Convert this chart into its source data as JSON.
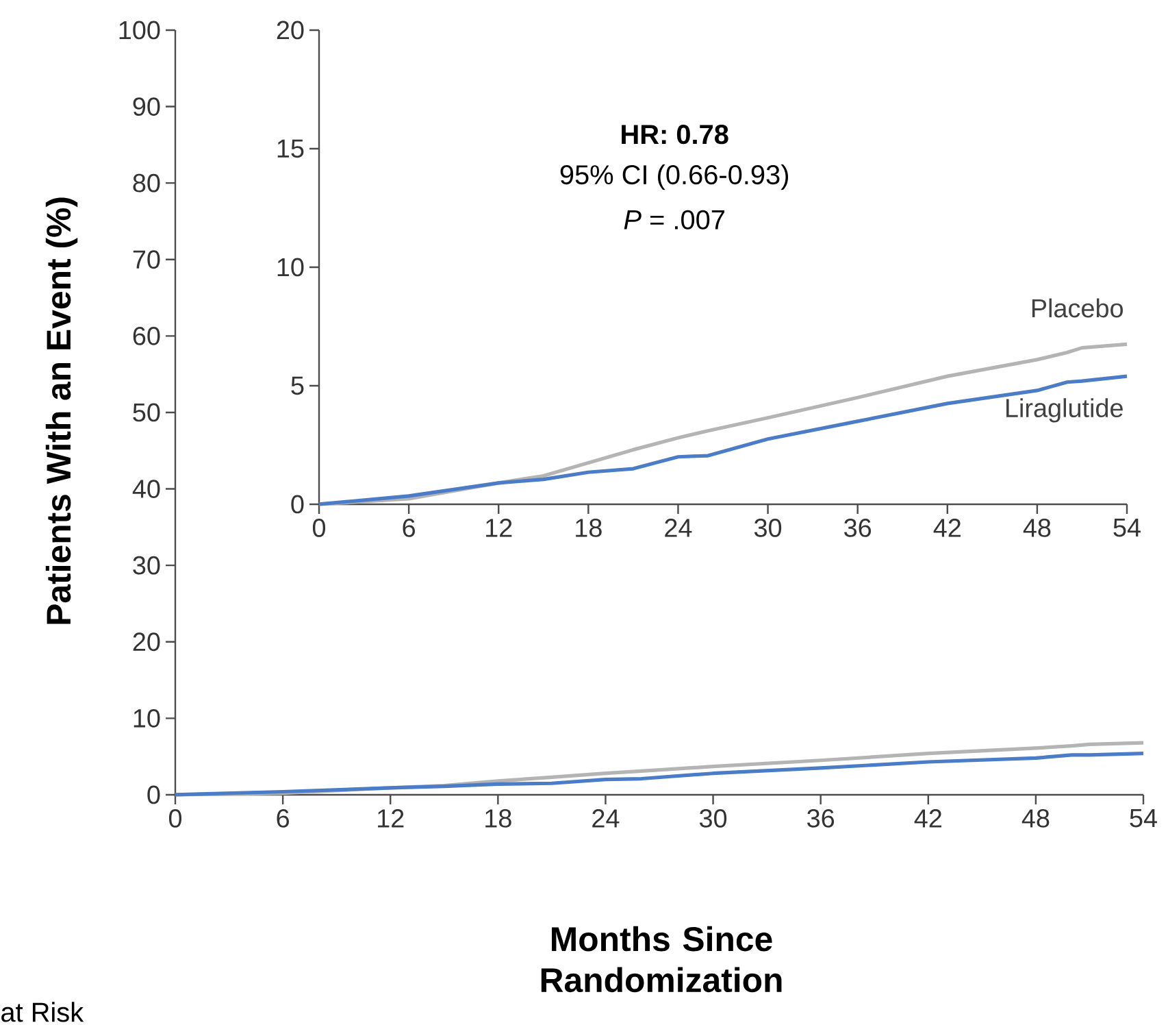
{
  "chart_data": [
    {
      "type": "line",
      "xlabel": "Months Since Randomization",
      "ylabel": "Patients With an Event (%)",
      "xlim": [
        0,
        54
      ],
      "ylim": [
        0,
        100
      ],
      "xticks": [
        0,
        6,
        12,
        18,
        24,
        30,
        36,
        42,
        48,
        54
      ],
      "yticks": [
        0,
        10,
        20,
        30,
        40,
        50,
        60,
        70,
        80,
        90,
        100
      ],
      "annotations": [
        "at Risk"
      ],
      "x": [
        0,
        6,
        12,
        15,
        18,
        21,
        24,
        26,
        30,
        36,
        42,
        48,
        50,
        51,
        54
      ],
      "series": [
        {
          "color": "#b4b4b4",
          "values": [
            0,
            0.2,
            0.9,
            1.2,
            1.8,
            2.3,
            2.8,
            3.1,
            3.7,
            4.5,
            5.4,
            6.1,
            6.4,
            6.6,
            6.8
          ]
        },
        {
          "color": "#4a7cc8",
          "values": [
            0,
            0.4,
            0.9,
            1.1,
            1.4,
            1.5,
            2.0,
            2.1,
            2.8,
            3.5,
            4.3,
            4.8,
            5.2,
            5.2,
            5.4
          ]
        }
      ]
    },
    {
      "type": "line",
      "xlim": [
        0,
        54
      ],
      "ylim": [
        0,
        20
      ],
      "xticks": [
        0,
        6,
        12,
        18,
        24,
        30,
        36,
        42,
        48,
        54
      ],
      "yticks": [
        0,
        5,
        10,
        15,
        20
      ],
      "annotations": [
        "**HR: 0.78**",
        "95% CI (0.66-0.93)",
        "*P* = .007"
      ],
      "x": [
        0,
        6,
        12,
        15,
        18,
        21,
        24,
        26,
        30,
        36,
        42,
        48,
        50,
        51,
        54
      ],
      "series": [
        {
          "name": "Placebo",
          "color": "#b4b4b4",
          "values": [
            0,
            0.23,
            0.9,
            1.2,
            1.75,
            2.3,
            2.8,
            3.1,
            3.65,
            4.5,
            5.4,
            6.1,
            6.4,
            6.6,
            6.75
          ]
        },
        {
          "name": "Liraglutide",
          "color": "#4a7cc8",
          "values": [
            0,
            0.35,
            0.9,
            1.05,
            1.35,
            1.5,
            2.0,
            2.05,
            2.75,
            3.5,
            4.25,
            4.8,
            5.15,
            5.2,
            5.4
          ]
        }
      ]
    }
  ]
}
